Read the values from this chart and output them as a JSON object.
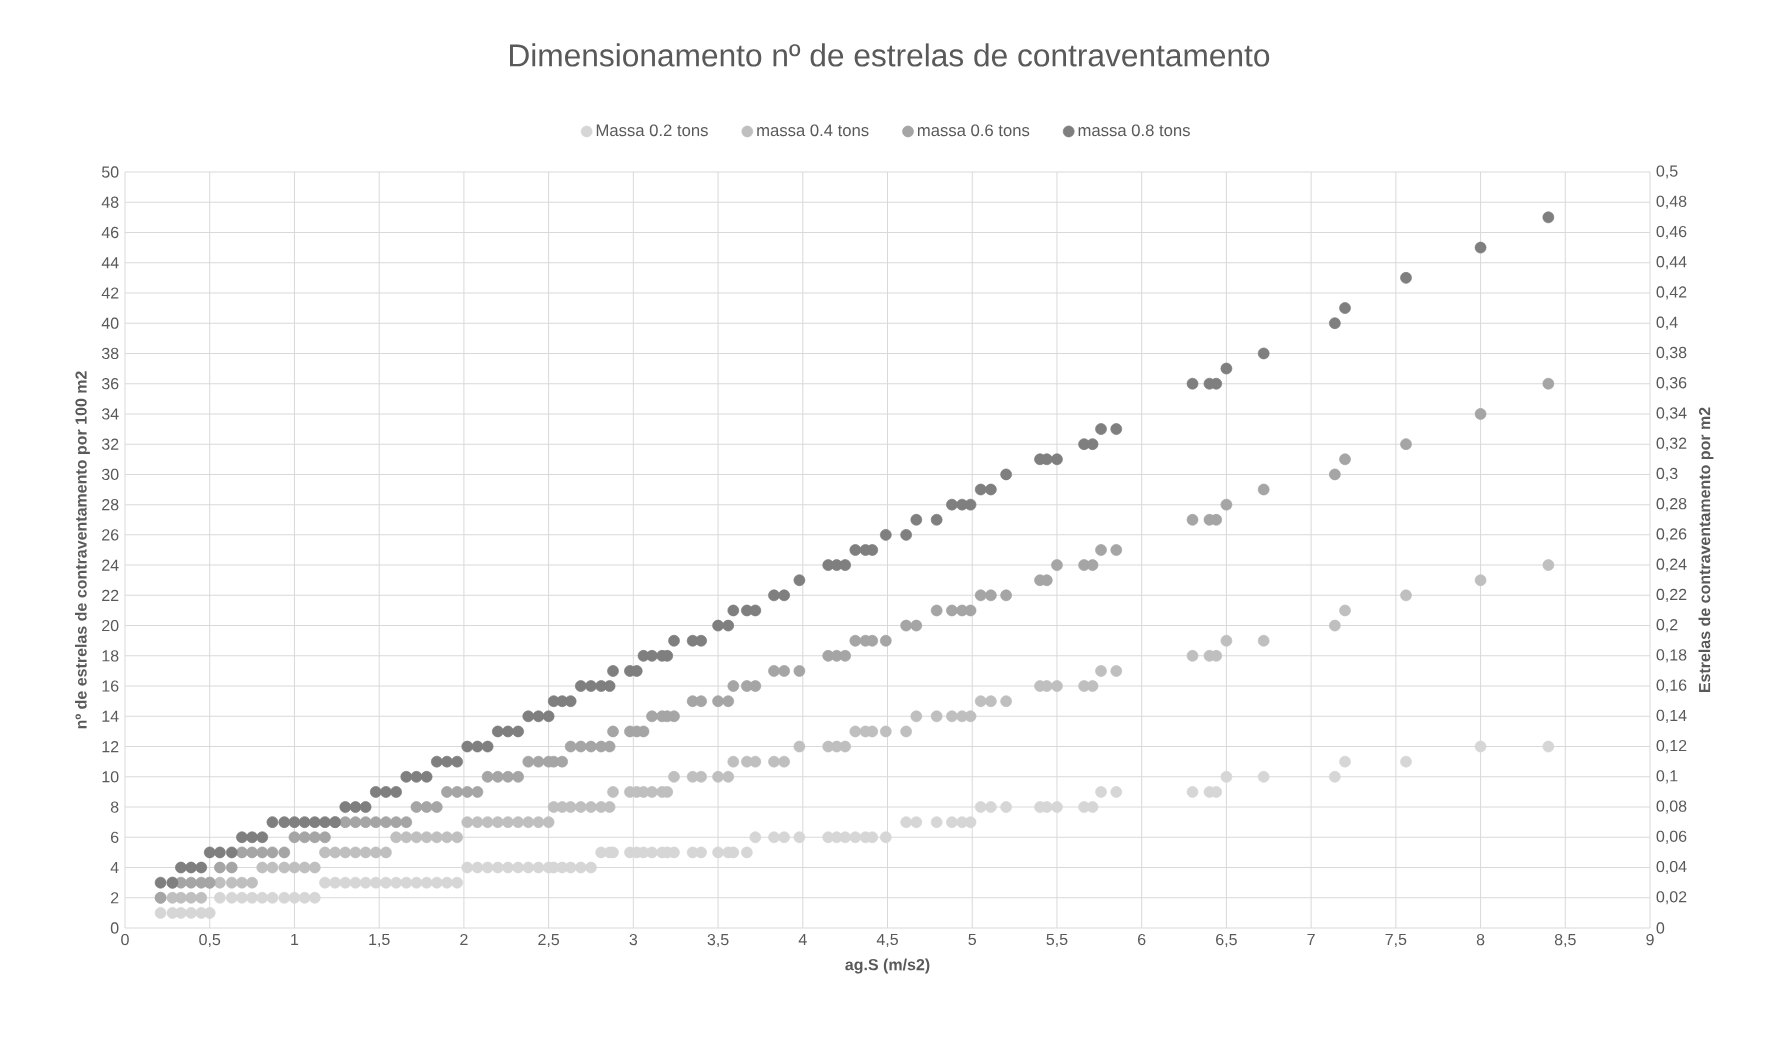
{
  "chart_data": {
    "type": "scatter",
    "title": "Dimensionamento nº de estrelas de contraventamento",
    "xlabel": "ag.S (m/s2)",
    "ylabel": "nº de estrelas de contraventamento por 100 m2",
    "y2label": "Estrelas de contraventamento por m2",
    "x": [
      0.21,
      0.28,
      0.33,
      0.39,
      0.45,
      0.5,
      0.56,
      0.63,
      0.69,
      0.75,
      0.81,
      0.87,
      0.94,
      1.0,
      1.06,
      1.12,
      1.18,
      1.24,
      1.3,
      1.36,
      1.42,
      1.48,
      1.54,
      1.6,
      1.66,
      1.72,
      1.78,
      1.84,
      1.9,
      1.96,
      2.02,
      2.08,
      2.14,
      2.2,
      2.26,
      2.32,
      2.38,
      2.44,
      2.5,
      2.53,
      2.58,
      2.63,
      2.69,
      2.75,
      2.81,
      2.86,
      2.88,
      2.98,
      3.02,
      3.06,
      3.11,
      3.17,
      3.2,
      3.24,
      3.35,
      3.4,
      3.5,
      3.56,
      3.59,
      3.67,
      3.72,
      3.83,
      3.89,
      3.98,
      4.15,
      4.2,
      4.25,
      4.31,
      4.37,
      4.41,
      4.49,
      4.61,
      4.67,
      4.79,
      4.88,
      4.94,
      4.99,
      5.05,
      5.11,
      5.2,
      5.4,
      5.44,
      5.5,
      5.66,
      5.71,
      5.76,
      5.85,
      6.3,
      6.4,
      6.44,
      6.5,
      6.72,
      7.14,
      7.2,
      7.56,
      8.0,
      8.4
    ],
    "series": [
      {
        "name": "Massa 0.2 tons",
        "color": "#d6d6d6",
        "values": [
          1,
          1,
          1,
          1,
          1,
          1,
          2,
          2,
          2,
          2,
          2,
          2,
          2,
          2,
          2,
          2,
          3,
          3,
          3,
          3,
          3,
          3,
          3,
          3,
          3,
          3,
          3,
          3,
          3,
          3,
          4,
          4,
          4,
          4,
          4,
          4,
          4,
          4,
          4,
          4,
          4,
          4,
          4,
          4,
          5,
          5,
          5,
          5,
          5,
          5,
          5,
          5,
          5,
          5,
          5,
          5,
          5,
          5,
          5,
          5,
          6,
          6,
          6,
          6,
          6,
          6,
          6,
          6,
          6,
          6,
          6,
          7,
          7,
          7,
          7,
          7,
          7,
          8,
          8,
          8,
          8,
          8,
          8,
          8,
          8,
          9,
          9,
          9,
          9,
          9,
          10,
          10,
          10,
          11,
          11,
          12,
          12
        ]
      },
      {
        "name": "massa 0.4 tons",
        "color": "#bfbfbf",
        "values": [
          2,
          2,
          2,
          2,
          2,
          3,
          3,
          3,
          3,
          3,
          4,
          4,
          4,
          4,
          4,
          4,
          5,
          5,
          5,
          5,
          5,
          5,
          5,
          6,
          6,
          6,
          6,
          6,
          6,
          6,
          7,
          7,
          7,
          7,
          7,
          7,
          7,
          7,
          7,
          8,
          8,
          8,
          8,
          8,
          8,
          8,
          9,
          9,
          9,
          9,
          9,
          9,
          9,
          10,
          10,
          10,
          10,
          10,
          11,
          11,
          11,
          11,
          11,
          12,
          12,
          12,
          12,
          13,
          13,
          13,
          13,
          13,
          14,
          14,
          14,
          14,
          14,
          15,
          15,
          15,
          16,
          16,
          16,
          16,
          16,
          17,
          17,
          18,
          18,
          18,
          19,
          19,
          20,
          21,
          22,
          23,
          24
        ]
      },
      {
        "name": "massa 0.6 tons",
        "color": "#a5a5a5",
        "values": [
          2,
          3,
          3,
          3,
          3,
          3,
          4,
          4,
          5,
          5,
          5,
          5,
          5,
          6,
          6,
          6,
          6,
          7,
          7,
          7,
          7,
          7,
          7,
          7,
          7,
          8,
          8,
          8,
          9,
          9,
          9,
          9,
          10,
          10,
          10,
          10,
          11,
          11,
          11,
          11,
          11,
          12,
          12,
          12,
          12,
          12,
          13,
          13,
          13,
          13,
          14,
          14,
          14,
          14,
          15,
          15,
          15,
          15,
          16,
          16,
          16,
          17,
          17,
          17,
          18,
          18,
          18,
          19,
          19,
          19,
          19,
          20,
          20,
          21,
          21,
          21,
          21,
          22,
          22,
          22,
          23,
          23,
          24,
          24,
          24,
          25,
          25,
          27,
          27,
          27,
          28,
          29,
          30,
          31,
          32,
          34,
          36
        ]
      },
      {
        "name": "massa 0.8 tons",
        "color": "#7f7f7f",
        "values": [
          3,
          3,
          4,
          4,
          4,
          5,
          5,
          5,
          6,
          6,
          6,
          7,
          7,
          7,
          7,
          7,
          7,
          7,
          8,
          8,
          8,
          9,
          9,
          9,
          10,
          10,
          10,
          11,
          11,
          11,
          12,
          12,
          12,
          13,
          13,
          13,
          14,
          14,
          14,
          15,
          15,
          15,
          16,
          16,
          16,
          16,
          17,
          17,
          17,
          18,
          18,
          18,
          18,
          19,
          19,
          19,
          20,
          20,
          21,
          21,
          21,
          22,
          22,
          23,
          24,
          24,
          24,
          25,
          25,
          25,
          26,
          26,
          27,
          27,
          28,
          28,
          28,
          29,
          29,
          30,
          31,
          31,
          31,
          32,
          32,
          33,
          33,
          36,
          36,
          36,
          37,
          38,
          40,
          41,
          43,
          45,
          47
        ]
      }
    ],
    "xlim": [
      0,
      9
    ],
    "xticks": [
      0,
      {
        "value": 0.5,
        "label": "0,5"
      },
      1,
      {
        "value": 1.5,
        "label": "1,5"
      },
      2,
      {
        "value": 2.5,
        "label": "2,5"
      },
      3,
      {
        "value": 3.5,
        "label": "3,5"
      },
      4,
      {
        "value": 4.5,
        "label": "4,5"
      },
      5,
      {
        "value": 5.5,
        "label": "5,5"
      },
      6,
      {
        "value": 6.5,
        "label": "6,5"
      },
      7,
      {
        "value": 7.5,
        "label": "7,5"
      },
      8,
      {
        "value": 8.5,
        "label": "8,5"
      },
      9
    ],
    "ylim": [
      0,
      50
    ],
    "yticks": [
      0,
      2,
      4,
      6,
      8,
      10,
      12,
      14,
      16,
      18,
      20,
      22,
      24,
      26,
      28,
      30,
      32,
      34,
      36,
      38,
      40,
      42,
      44,
      46,
      48,
      50
    ],
    "y2lim": [
      0,
      0.5
    ],
    "y2ticks": [
      0,
      {
        "value": 0.02,
        "label": "0,02"
      },
      {
        "value": 0.04,
        "label": "0,04"
      },
      {
        "value": 0.06,
        "label": "0,06"
      },
      {
        "value": 0.08,
        "label": "0,08"
      },
      {
        "value": 0.1,
        "label": "0,1"
      },
      {
        "value": 0.12,
        "label": "0,12"
      },
      {
        "value": 0.14,
        "label": "0,14"
      },
      {
        "value": 0.16,
        "label": "0,16"
      },
      {
        "value": 0.18,
        "label": "0,18"
      },
      {
        "value": 0.2,
        "label": "0,2"
      },
      {
        "value": 0.22,
        "label": "0,22"
      },
      {
        "value": 0.24,
        "label": "0,24"
      },
      {
        "value": 0.26,
        "label": "0,26"
      },
      {
        "value": 0.28,
        "label": "0,28"
      },
      {
        "value": 0.3,
        "label": "0,3"
      },
      {
        "value": 0.32,
        "label": "0,32"
      },
      {
        "value": 0.34,
        "label": "0,34"
      },
      {
        "value": 0.36,
        "label": "0,36"
      },
      {
        "value": 0.38,
        "label": "0,38"
      },
      {
        "value": 0.4,
        "label": "0,4"
      },
      {
        "value": 0.42,
        "label": "0,42"
      },
      {
        "value": 0.44,
        "label": "0,44"
      },
      {
        "value": 0.46,
        "label": "0,46"
      },
      {
        "value": 0.48,
        "label": "0,48"
      },
      {
        "value": 0.5,
        "label": "0,5"
      }
    ],
    "grid": true,
    "legend": "top",
    "marker": "circle"
  }
}
